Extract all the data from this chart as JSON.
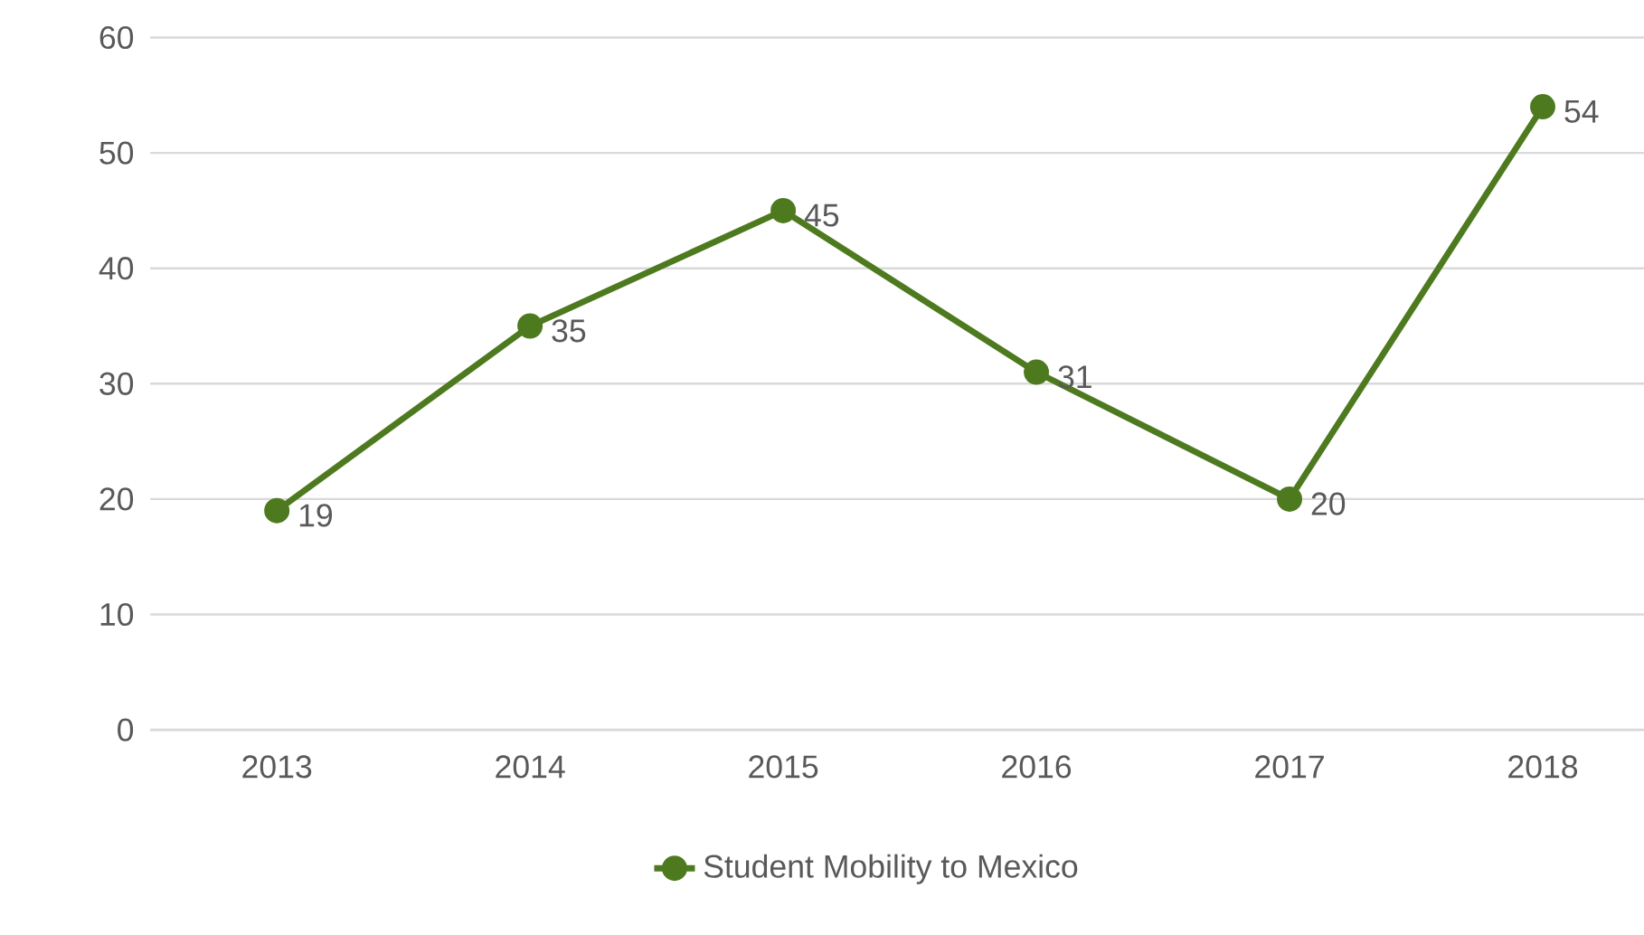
{
  "chart_data": {
    "type": "line",
    "categories": [
      "2013",
      "2014",
      "2015",
      "2016",
      "2017",
      "2018"
    ],
    "series": [
      {
        "name": "Student Mobility to Mexico",
        "color": "#4e7a1f",
        "values": [
          19,
          35,
          45,
          31,
          20,
          54
        ]
      }
    ],
    "ylim": [
      0,
      60
    ],
    "yticks": [
      0,
      10,
      20,
      30,
      40,
      50,
      60
    ],
    "grid": "y",
    "legend": "bottom",
    "marker": "circle",
    "line_style": "solid",
    "data_labels": true
  }
}
